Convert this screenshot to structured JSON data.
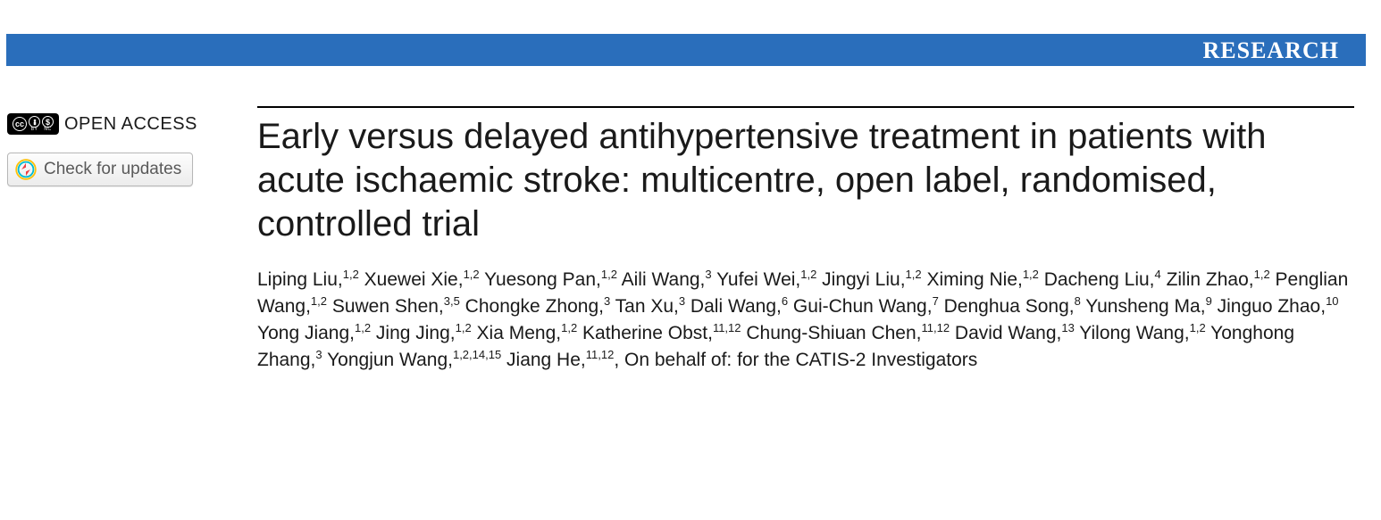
{
  "banner": {
    "label": "RESEARCH",
    "bg": "#2a6ebb",
    "color": "#ffffff"
  },
  "sidebar": {
    "open_access_label": "OPEN ACCESS",
    "cc_icons": [
      "CC",
      "BY",
      "NC"
    ],
    "updates_label": "Check for updates"
  },
  "article": {
    "title": "Early versus delayed antihypertensive treatment in patients with acute ischaemic stroke: multicentre, open label, randomised, controlled trial",
    "authors": [
      {
        "name": "Liping Liu",
        "aff": "1,2"
      },
      {
        "name": "Xuewei Xie",
        "aff": "1,2"
      },
      {
        "name": "Yuesong Pan",
        "aff": "1,2"
      },
      {
        "name": "Aili Wang",
        "aff": "3"
      },
      {
        "name": "Yufei Wei",
        "aff": "1,2"
      },
      {
        "name": "Jingyi Liu",
        "aff": "1,2"
      },
      {
        "name": "Ximing Nie",
        "aff": "1,2"
      },
      {
        "name": "Dacheng Liu",
        "aff": "4"
      },
      {
        "name": "Zilin Zhao",
        "aff": "1,2"
      },
      {
        "name": "Penglian Wang",
        "aff": "1,2"
      },
      {
        "name": "Suwen Shen",
        "aff": "3,5"
      },
      {
        "name": "Chongke Zhong",
        "aff": "3"
      },
      {
        "name": "Tan Xu",
        "aff": "3"
      },
      {
        "name": "Dali Wang",
        "aff": "6"
      },
      {
        "name": "Gui-Chun Wang",
        "aff": "7"
      },
      {
        "name": "Denghua Song",
        "aff": "8"
      },
      {
        "name": "Yunsheng Ma",
        "aff": "9"
      },
      {
        "name": "Jinguo Zhao",
        "aff": "10"
      },
      {
        "name": "Yong Jiang",
        "aff": "1,2"
      },
      {
        "name": "Jing Jing",
        "aff": "1,2"
      },
      {
        "name": "Xia Meng",
        "aff": "1,2"
      },
      {
        "name": "Katherine Obst",
        "aff": "11,12"
      },
      {
        "name": "Chung-Shiuan Chen",
        "aff": "11,12"
      },
      {
        "name": "David Wang",
        "aff": "13"
      },
      {
        "name": "Yilong Wang",
        "aff": "1,2"
      },
      {
        "name": "Yonghong Zhang",
        "aff": "3"
      },
      {
        "name": "Yongjun Wang",
        "aff": "1,2,14,15"
      },
      {
        "name": "Jiang He",
        "aff": "11,12"
      }
    ],
    "on_behalf": "On behalf of: for the CATIS-2 Investigators"
  },
  "colors": {
    "banner_bg": "#2a6ebb",
    "text": "#1a1a1a",
    "button_border": "#b7b7b7",
    "button_text": "#5a5a5a",
    "crossmark_ring_outer": "#ffc107",
    "crossmark_ring_inner": "#00bcd4",
    "crossmark_fill": "#ef3e42"
  },
  "typography": {
    "banner_fontsize": 26,
    "title_fontsize": 40,
    "authors_fontsize": 21,
    "oa_fontsize": 20,
    "button_fontsize": 19
  }
}
